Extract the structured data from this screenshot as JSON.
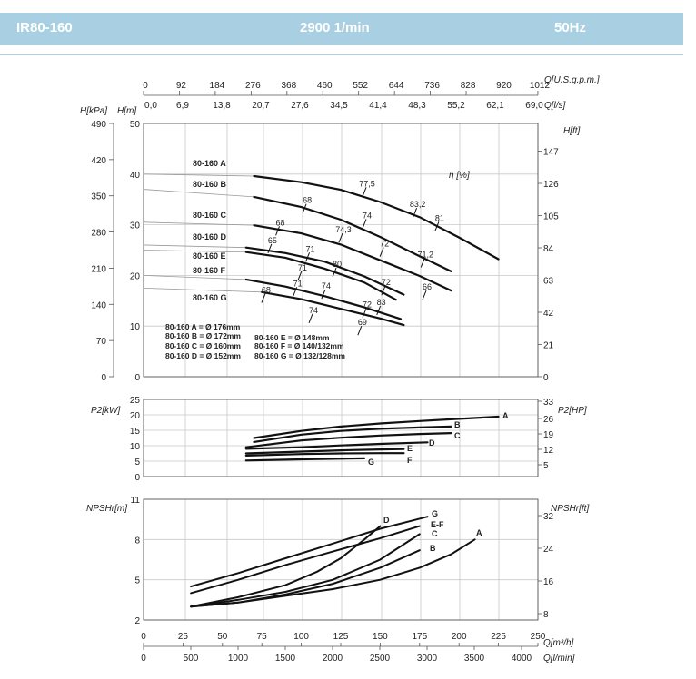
{
  "header": {
    "model": "IR80-160",
    "speed": "2900 1/min",
    "frequency": "50Hz",
    "bar_color": "#a9cfe3"
  },
  "chart_data": [
    {
      "type": "line",
      "panel": "head",
      "top_axes": [
        {
          "label": "Q[U.S.g.p.m.]",
          "ticks": [
            "0",
            "92",
            "184",
            "276",
            "368",
            "460",
            "552",
            "644",
            "736",
            "828",
            "920",
            "1012"
          ]
        },
        {
          "label": "Q[l/s]",
          "ticks": [
            "0,0",
            "6,9",
            "13,8",
            "20,7",
            "27,6",
            "34,5",
            "41,4",
            "48,3",
            "55,2",
            "62,1",
            "69,0"
          ]
        }
      ],
      "y_left_kpa": {
        "label": "H[kPa]",
        "ticks": [
          "0",
          "70",
          "140",
          "210",
          "280",
          "350",
          "420",
          "490"
        ]
      },
      "y_left_m": {
        "label": "H[m]",
        "ticks": [
          "0",
          "10",
          "20",
          "30",
          "40",
          "50"
        ],
        "ylim": [
          0,
          50
        ]
      },
      "y_right_ft": {
        "label": "H[ft]",
        "ticks": [
          "0",
          "21",
          "42",
          "63",
          "84",
          "105",
          "126",
          "147"
        ]
      },
      "xlim": [
        0,
        250
      ],
      "series": [
        {
          "name": "80-160 A",
          "x": [
            0,
            70,
            100,
            125,
            150,
            175,
            200,
            225
          ],
          "y": [
            40,
            39.6,
            38.4,
            36.9,
            34.5,
            31.5,
            27.5,
            23.2
          ]
        },
        {
          "name": "80-160 B",
          "x": [
            0,
            70,
            100,
            125,
            150,
            175,
            195
          ],
          "y": [
            37,
            35.5,
            33.5,
            31,
            27.6,
            23.8,
            20.8
          ]
        },
        {
          "name": "80-160 C",
          "x": [
            0,
            70,
            100,
            125,
            150,
            175,
            195
          ],
          "y": [
            30.5,
            29.9,
            28.3,
            26.1,
            23,
            19.9,
            17
          ]
        },
        {
          "name": "80-160 D",
          "x": [
            0,
            65,
            90,
            115,
            140,
            165
          ],
          "y": [
            26,
            25.5,
            24.4,
            22.7,
            19.8,
            16.2
          ]
        },
        {
          "name": "80-160 E",
          "x": [
            0,
            65,
            90,
            115,
            140,
            160
          ],
          "y": [
            25,
            24.6,
            23.5,
            21.3,
            18.6,
            15.2
          ]
        },
        {
          "name": "80-160 F",
          "x": [
            0,
            65,
            90,
            115,
            140,
            163
          ],
          "y": [
            20,
            19.2,
            17.8,
            15.9,
            13.7,
            11.4
          ]
        },
        {
          "name": "80-160 G",
          "x": [
            0,
            75,
            100,
            125,
            150,
            165
          ],
          "y": [
            17.5,
            16.7,
            15.3,
            13.4,
            11.5,
            10.2
          ]
        }
      ],
      "efficiency_axis_label": "η [%]",
      "efficiency_marks": [
        {
          "label": "77,5",
          "x": 140,
          "y": 36.5
        },
        {
          "label": "83,2",
          "x": 172,
          "y": 32.4
        },
        {
          "label": "81",
          "x": 186,
          "y": 29.7
        },
        {
          "label": "68",
          "x": 102,
          "y": 33.2
        },
        {
          "label": "74",
          "x": 140,
          "y": 30.2
        },
        {
          "label": "68",
          "x": 85,
          "y": 28.8
        },
        {
          "label": "74,3",
          "x": 125,
          "y": 27.4
        },
        {
          "label": "72",
          "x": 151,
          "y": 24.6
        },
        {
          "label": "71,2",
          "x": 177,
          "y": 22.5
        },
        {
          "label": "65",
          "x": 80,
          "y": 25.3
        },
        {
          "label": "71",
          "x": 104,
          "y": 23.6
        },
        {
          "label": "71",
          "x": 99,
          "y": 19.9
        },
        {
          "label": "80",
          "x": 121,
          "y": 20.6
        },
        {
          "label": "72",
          "x": 152,
          "y": 17
        },
        {
          "label": "66",
          "x": 178,
          "y": 16.1
        },
        {
          "label": "68",
          "x": 76,
          "y": 15.5
        },
        {
          "label": "71",
          "x": 96,
          "y": 16.8
        },
        {
          "label": "74",
          "x": 114,
          "y": 16.3
        },
        {
          "label": "83",
          "x": 149,
          "y": 13.1
        },
        {
          "label": "74",
          "x": 106,
          "y": 11.5
        },
        {
          "label": "72",
          "x": 140,
          "y": 12.6
        },
        {
          "label": "69",
          "x": 137,
          "y": 9.1
        }
      ],
      "legend": [
        "80-160 A = Ø 176mm",
        "80-160 B = Ø 172mm",
        "80-160 C = Ø 160mm",
        "80-160 D = Ø 152mm",
        "80-160 E = Ø 148mm",
        "80-160 F = Ø 140/132mm",
        "80-160 G = Ø 132/128mm"
      ]
    },
    {
      "type": "line",
      "panel": "power",
      "y_left": {
        "label": "P2[kW]",
        "ticks": [
          "0",
          "5",
          "10",
          "15",
          "20",
          "25"
        ],
        "ylim": [
          0,
          25
        ]
      },
      "y_right": {
        "label": "P2[HP]",
        "ticks": [
          "5",
          "12",
          "19",
          "26",
          "33"
        ]
      },
      "xlim": [
        0,
        250
      ],
      "series": [
        {
          "name": "A",
          "x": [
            70,
            100,
            125,
            150,
            175,
            200,
            225
          ],
          "y": [
            12.5,
            14.8,
            16.2,
            17.2,
            18,
            18.7,
            19.4
          ]
        },
        {
          "name": "B",
          "x": [
            70,
            100,
            125,
            150,
            175,
            195
          ],
          "y": [
            11.2,
            13.6,
            14.8,
            15.5,
            15.9,
            16.2
          ]
        },
        {
          "name": "C",
          "x": [
            65,
            100,
            125,
            150,
            175,
            195
          ],
          "y": [
            9.5,
            11.7,
            12.6,
            13.3,
            13.8,
            14.1
          ]
        },
        {
          "name": "D",
          "x": [
            65,
            100,
            125,
            150,
            180
          ],
          "y": [
            9,
            9.5,
            10.1,
            10.6,
            11.1
          ]
        },
        {
          "name": "E",
          "x": [
            65,
            100,
            125,
            150,
            165
          ],
          "y": [
            7.5,
            8.1,
            8.5,
            8.8,
            8.9
          ]
        },
        {
          "name": "F",
          "x": [
            65,
            100,
            125,
            150,
            165
          ],
          "y": [
            6.8,
            7.3,
            7.5,
            7.6,
            7.6
          ]
        },
        {
          "name": "G",
          "x": [
            65,
            100,
            125,
            140
          ],
          "y": [
            5.2,
            5.6,
            5.8,
            5.9
          ]
        }
      ]
    },
    {
      "type": "line",
      "panel": "npsh",
      "y_left": {
        "label": "NPSHr[m]",
        "ticks": [
          "2",
          "5",
          "8",
          "11"
        ],
        "ylim": [
          2,
          11
        ]
      },
      "y_right": {
        "label": "NPSHr[ft]",
        "ticks": [
          "8",
          "16",
          "24",
          "32"
        ]
      },
      "x_bottom_m3h": {
        "label": "Q[m³/h]",
        "ticks": [
          "0",
          "25",
          "50",
          "75",
          "100",
          "125",
          "150",
          "175",
          "200",
          "225",
          "250"
        ]
      },
      "x_bottom_lmin": {
        "label": "Q[l/min]",
        "ticks": [
          "0",
          "500",
          "1000",
          "1500",
          "2000",
          "2500",
          "3000",
          "3500",
          "4000"
        ]
      },
      "xlim": [
        0,
        250
      ],
      "series": [
        {
          "name": "A",
          "x": [
            30,
            60,
            90,
            120,
            150,
            175,
            195,
            210
          ],
          "y": [
            3,
            3.3,
            3.8,
            4.3,
            5,
            5.9,
            6.9,
            8
          ]
        },
        {
          "name": "B",
          "x": [
            30,
            60,
            90,
            120,
            150,
            175
          ],
          "y": [
            3,
            3.3,
            3.9,
            4.7,
            5.9,
            7.2
          ]
        },
        {
          "name": "C",
          "x": [
            30,
            60,
            90,
            120,
            150,
            175
          ],
          "y": [
            3,
            3.5,
            4.1,
            5,
            6.5,
            8.4
          ]
        },
        {
          "name": "D",
          "x": [
            30,
            60,
            90,
            110,
            125,
            140,
            150
          ],
          "y": [
            3,
            3.7,
            4.6,
            5.6,
            6.6,
            8,
            9
          ]
        },
        {
          "name": "E-F",
          "x": [
            30,
            60,
            90,
            120,
            150,
            175
          ],
          "y": [
            4,
            5,
            6.1,
            7.1,
            8.1,
            9
          ]
        },
        {
          "name": "G",
          "x": [
            30,
            60,
            90,
            120,
            150,
            180
          ],
          "y": [
            4.5,
            5.5,
            6.6,
            7.7,
            8.8,
            9.7
          ]
        }
      ]
    }
  ]
}
